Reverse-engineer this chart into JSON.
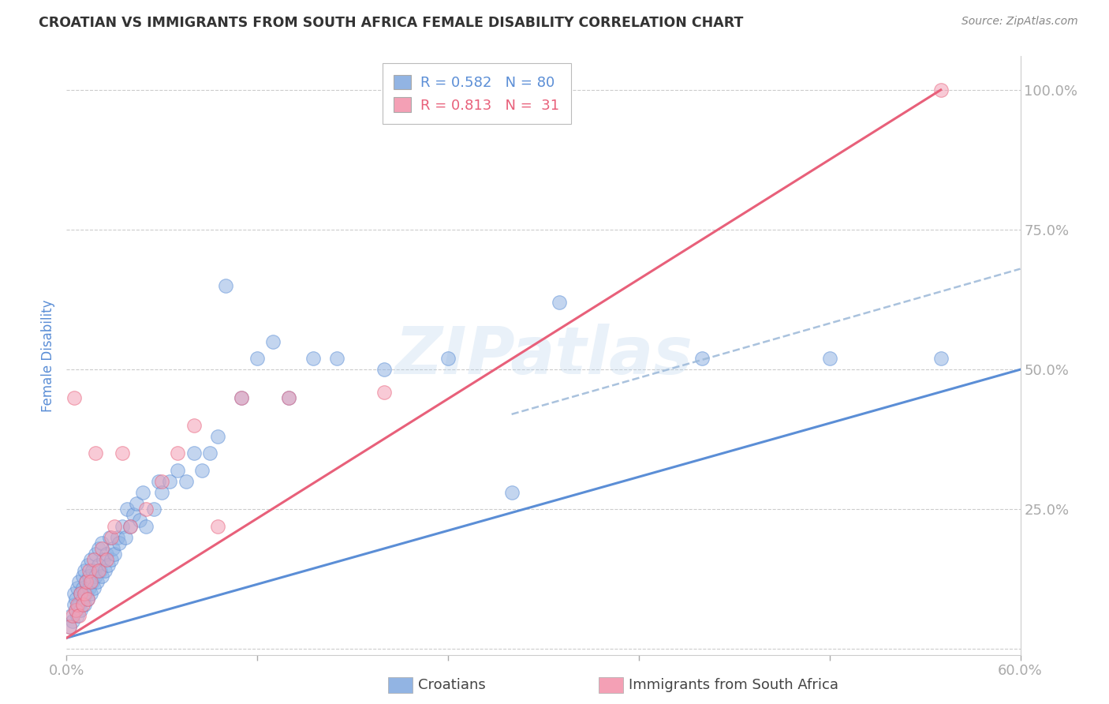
{
  "title": "CROATIAN VS IMMIGRANTS FROM SOUTH AFRICA FEMALE DISABILITY CORRELATION CHART",
  "source": "Source: ZipAtlas.com",
  "ylabel_label": "Female Disability",
  "watermark": "ZIPatlas",
  "xmin": 0.0,
  "xmax": 0.6,
  "ymin": -0.01,
  "ymax": 1.06,
  "ytick_vals": [
    0.0,
    0.25,
    0.5,
    0.75,
    1.0
  ],
  "ytick_labels": [
    "",
    "25.0%",
    "50.0%",
    "75.0%",
    "100.0%"
  ],
  "xtick_vals": [
    0.0,
    0.12,
    0.24,
    0.36,
    0.48,
    0.6
  ],
  "xtick_labels": [
    "0.0%",
    "",
    "",
    "",
    "",
    "60.0%"
  ],
  "blue_R": 0.582,
  "blue_N": 80,
  "pink_R": 0.813,
  "pink_N": 31,
  "blue_color": "#92B4E3",
  "pink_color": "#F4A0B5",
  "blue_line_color": "#5B8ED6",
  "pink_line_color": "#E8607A",
  "dashed_line_color": "#9BB8D8",
  "tick_color": "#5B8ED6",
  "background_color": "#FFFFFF",
  "blue_line_x": [
    0.0,
    0.6
  ],
  "blue_line_y": [
    0.02,
    0.5
  ],
  "pink_line_x": [
    0.0,
    0.55
  ],
  "pink_line_y": [
    0.02,
    1.0
  ],
  "dashed_line_x": [
    0.28,
    0.6
  ],
  "dashed_line_y": [
    0.42,
    0.68
  ],
  "blue_scatter_x": [
    0.002,
    0.003,
    0.004,
    0.005,
    0.005,
    0.006,
    0.006,
    0.007,
    0.007,
    0.008,
    0.008,
    0.009,
    0.009,
    0.01,
    0.01,
    0.01,
    0.011,
    0.011,
    0.012,
    0.012,
    0.013,
    0.013,
    0.014,
    0.014,
    0.015,
    0.015,
    0.016,
    0.016,
    0.017,
    0.018,
    0.018,
    0.019,
    0.02,
    0.02,
    0.021,
    0.022,
    0.022,
    0.023,
    0.024,
    0.025,
    0.026,
    0.027,
    0.028,
    0.029,
    0.03,
    0.032,
    0.033,
    0.035,
    0.037,
    0.038,
    0.04,
    0.042,
    0.044,
    0.046,
    0.048,
    0.05,
    0.055,
    0.058,
    0.06,
    0.065,
    0.07,
    0.075,
    0.08,
    0.085,
    0.09,
    0.095,
    0.1,
    0.11,
    0.12,
    0.13,
    0.14,
    0.155,
    0.17,
    0.2,
    0.24,
    0.28,
    0.31,
    0.4,
    0.48,
    0.55
  ],
  "blue_scatter_y": [
    0.04,
    0.06,
    0.05,
    0.08,
    0.1,
    0.07,
    0.09,
    0.06,
    0.11,
    0.08,
    0.12,
    0.07,
    0.1,
    0.09,
    0.13,
    0.11,
    0.08,
    0.14,
    0.1,
    0.12,
    0.09,
    0.15,
    0.11,
    0.13,
    0.1,
    0.16,
    0.12,
    0.14,
    0.11,
    0.13,
    0.17,
    0.12,
    0.15,
    0.18,
    0.14,
    0.13,
    0.19,
    0.16,
    0.14,
    0.17,
    0.15,
    0.2,
    0.16,
    0.18,
    0.17,
    0.2,
    0.19,
    0.22,
    0.2,
    0.25,
    0.22,
    0.24,
    0.26,
    0.23,
    0.28,
    0.22,
    0.25,
    0.3,
    0.28,
    0.3,
    0.32,
    0.3,
    0.35,
    0.32,
    0.35,
    0.38,
    0.65,
    0.45,
    0.52,
    0.55,
    0.45,
    0.52,
    0.52,
    0.5,
    0.52,
    0.28,
    0.62,
    0.52,
    0.52,
    0.52
  ],
  "pink_scatter_x": [
    0.002,
    0.004,
    0.005,
    0.006,
    0.007,
    0.008,
    0.009,
    0.01,
    0.011,
    0.012,
    0.013,
    0.014,
    0.015,
    0.017,
    0.018,
    0.02,
    0.022,
    0.025,
    0.028,
    0.03,
    0.035,
    0.04,
    0.05,
    0.06,
    0.07,
    0.08,
    0.095,
    0.11,
    0.14,
    0.2,
    0.55
  ],
  "pink_scatter_y": [
    0.04,
    0.06,
    0.45,
    0.07,
    0.08,
    0.06,
    0.1,
    0.08,
    0.1,
    0.12,
    0.09,
    0.14,
    0.12,
    0.16,
    0.35,
    0.14,
    0.18,
    0.16,
    0.2,
    0.22,
    0.35,
    0.22,
    0.25,
    0.3,
    0.35,
    0.4,
    0.22,
    0.45,
    0.45,
    0.46,
    1.0
  ]
}
